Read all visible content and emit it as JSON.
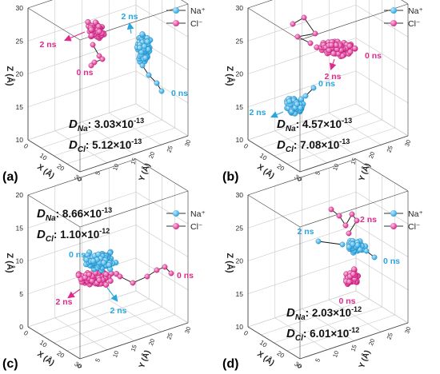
{
  "colors": {
    "na": "#29a5e0",
    "cl": "#dd2a8c",
    "axis": "#444444",
    "grid": "#c8c8c8"
  },
  "legend": {
    "na_label": "Na⁺",
    "cl_label": "Cl⁻"
  },
  "axis_labels": {
    "x": "X (Å)",
    "y": "Y (Å)",
    "z": "Z (Å)"
  },
  "panels": [
    {
      "label": "(a)",
      "z_ticks": [
        "10",
        "15",
        "20",
        "25",
        "30"
      ],
      "x_ticks": [
        "0",
        "10",
        "20",
        "30"
      ],
      "y_ticks": [
        "0",
        "5",
        "10",
        "15",
        "20",
        "25",
        "30"
      ],
      "d_na_prefix": "D",
      "d_na_sub": "Na",
      "d_na_value": ": 3.03×10",
      "d_na_exp": "-13",
      "d_cl_prefix": "D",
      "d_cl_sub": "Cl",
      "d_cl_value": ": 5.12×10",
      "d_cl_exp": "-13",
      "time_labels": [
        {
          "text": "2 ns",
          "ion": "cl"
        },
        {
          "text": "0 ns",
          "ion": "cl"
        },
        {
          "text": "2 ns",
          "ion": "na"
        },
        {
          "text": "0 ns",
          "ion": "na"
        }
      ]
    },
    {
      "label": "(b)",
      "z_ticks": [
        "10",
        "15",
        "20",
        "25",
        "30"
      ],
      "x_ticks": [
        "0",
        "10",
        "20",
        "30"
      ],
      "y_ticks": [
        "0",
        "5",
        "10",
        "15",
        "20",
        "25",
        "30"
      ],
      "d_na_prefix": "D",
      "d_na_sub": "Na",
      "d_na_value": ": 4.57×10",
      "d_na_exp": "-13",
      "d_cl_prefix": "D",
      "d_cl_sub": "Cl",
      "d_cl_value": ": 7.08×10",
      "d_cl_exp": "-13",
      "time_labels": [
        {
          "text": "0 ns",
          "ion": "cl"
        },
        {
          "text": "2 ns",
          "ion": "cl"
        },
        {
          "text": "0 ns",
          "ion": "na"
        },
        {
          "text": "2 ns",
          "ion": "na"
        }
      ]
    },
    {
      "label": "(c)",
      "z_ticks": [
        "0",
        "5",
        "10",
        "15",
        "20"
      ],
      "x_ticks": [
        "0",
        "10",
        "20",
        "30"
      ],
      "y_ticks": [
        "0",
        "5",
        "10",
        "15",
        "20",
        "25",
        "30"
      ],
      "d_na_prefix": "D",
      "d_na_sub": "Na",
      "d_na_value": ": 8.66×10",
      "d_na_exp": "-13",
      "d_cl_prefix": "D",
      "d_cl_sub": "Cl",
      "d_cl_value": ":  1.10×10",
      "d_cl_exp": "-12",
      "time_labels": [
        {
          "text": "0 ns",
          "ion": "na"
        },
        {
          "text": "0 ns",
          "ion": "cl"
        },
        {
          "text": "2 ns",
          "ion": "cl"
        },
        {
          "text": "2 ns",
          "ion": "na"
        }
      ]
    },
    {
      "label": "(d)",
      "z_ticks": [
        "10",
        "15",
        "20",
        "25",
        "30"
      ],
      "x_ticks": [
        "0",
        "10",
        "20",
        "30"
      ],
      "y_ticks": [
        "0",
        "5",
        "10",
        "15",
        "20",
        "25",
        "30"
      ],
      "d_na_prefix": "D",
      "d_na_sub": "Na",
      "d_na_value": ": 2.03×10",
      "d_na_exp": "-12",
      "d_cl_prefix": "D",
      "d_cl_sub": "Cl",
      "d_cl_value": ": 6.01×10",
      "d_cl_exp": "-12",
      "time_labels": [
        {
          "text": "2 ns",
          "ion": "cl"
        },
        {
          "text": "2 ns",
          "ion": "na"
        },
        {
          "text": "0 ns",
          "ion": "na"
        },
        {
          "text": "0 ns",
          "ion": "cl"
        }
      ]
    }
  ],
  "chart_data": [
    {
      "type": "scatter",
      "subtype": "3d-trajectory",
      "panel": "(a)",
      "xlabel": "X (Å)",
      "ylabel": "Y (Å)",
      "zlabel": "Z (Å)",
      "xlim": [
        0,
        30
      ],
      "ylim": [
        0,
        30
      ],
      "zlim": [
        10,
        30
      ],
      "series": [
        {
          "name": "Na⁺",
          "trajectory_start": "0 ns",
          "trajectory_end": "2 ns"
        },
        {
          "name": "Cl⁻",
          "trajectory_start": "0 ns",
          "trajectory_end": "2 ns"
        }
      ],
      "D_Na": 3.03e-13,
      "D_Cl": 5.12e-13
    },
    {
      "type": "scatter",
      "subtype": "3d-trajectory",
      "panel": "(b)",
      "xlabel": "X (Å)",
      "ylabel": "Y (Å)",
      "zlabel": "Z (Å)",
      "xlim": [
        0,
        30
      ],
      "ylim": [
        0,
        30
      ],
      "zlim": [
        10,
        30
      ],
      "series": [
        {
          "name": "Na⁺",
          "trajectory_start": "0 ns",
          "trajectory_end": "2 ns"
        },
        {
          "name": "Cl⁻",
          "trajectory_start": "0 ns",
          "trajectory_end": "2 ns"
        }
      ],
      "D_Na": 4.57e-13,
      "D_Cl": 7.08e-13
    },
    {
      "type": "scatter",
      "subtype": "3d-trajectory",
      "panel": "(c)",
      "xlabel": "X (Å)",
      "ylabel": "Y (Å)",
      "zlabel": "Z (Å)",
      "xlim": [
        0,
        30
      ],
      "ylim": [
        0,
        30
      ],
      "zlim": [
        0,
        20
      ],
      "series": [
        {
          "name": "Na⁺",
          "trajectory_start": "0 ns",
          "trajectory_end": "2 ns"
        },
        {
          "name": "Cl⁻",
          "trajectory_start": "0 ns",
          "trajectory_end": "2 ns"
        }
      ],
      "D_Na": 8.66e-13,
      "D_Cl": 1.1e-12
    },
    {
      "type": "scatter",
      "subtype": "3d-trajectory",
      "panel": "(d)",
      "xlabel": "X (Å)",
      "ylabel": "Y (Å)",
      "zlabel": "Z (Å)",
      "xlim": [
        0,
        30
      ],
      "ylim": [
        0,
        30
      ],
      "zlim": [
        10,
        30
      ],
      "series": [
        {
          "name": "Na⁺",
          "trajectory_start": "0 ns",
          "trajectory_end": "2 ns"
        },
        {
          "name": "Cl⁻",
          "trajectory_start": "0 ns",
          "trajectory_end": "2 ns"
        }
      ],
      "D_Na": 2.03e-12,
      "D_Cl": 6.01e-12
    }
  ]
}
